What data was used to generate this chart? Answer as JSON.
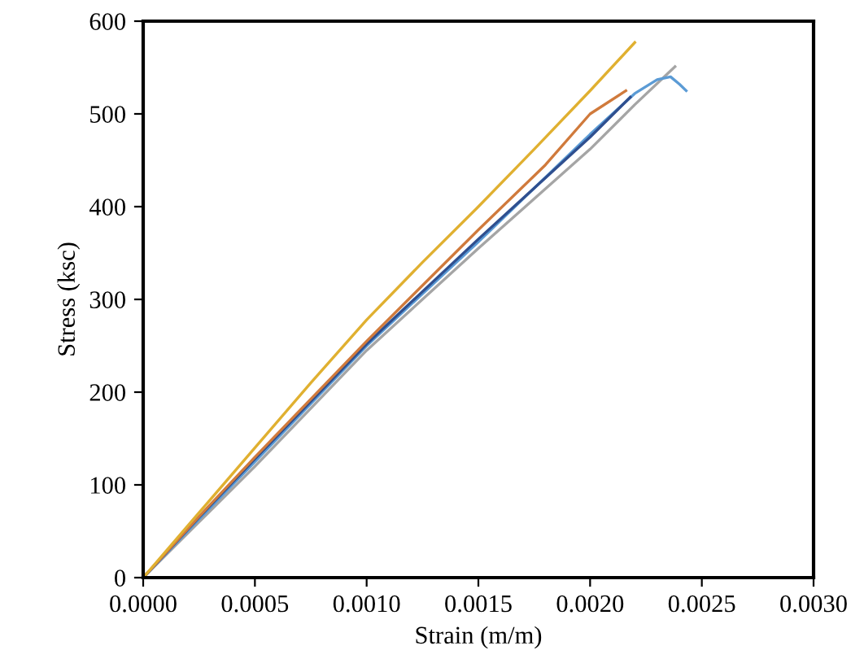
{
  "chart_data": {
    "type": "line",
    "xlabel": "Strain (m/m)",
    "ylabel": "Stress (ksc)",
    "xlim": [
      0,
      0.003
    ],
    "xticks": [
      {
        "value": 0,
        "label": "0.0000"
      },
      {
        "value": 0.0005,
        "label": "0.0005"
      },
      {
        "value": 0.001,
        "label": "0.0010"
      },
      {
        "value": 0.0015,
        "label": "0.0015"
      },
      {
        "value": 0.002,
        "label": "0.0020"
      },
      {
        "value": 0.0025,
        "label": "0.0025"
      },
      {
        "value": 0.003,
        "label": "0.0030"
      }
    ],
    "ylim": [
      0,
      600
    ],
    "yticks": [
      0,
      100,
      200,
      300,
      400,
      500,
      600
    ],
    "grid": false,
    "marker": "none",
    "line_style": "solid",
    "series": [
      {
        "color": "#a5a5a5",
        "x": [
          0,
          0.00025,
          0.0005,
          0.001,
          0.0015,
          0.002,
          0.0022,
          0.00238
        ],
        "values": [
          0,
          60,
          120,
          245,
          355,
          462,
          510,
          551
        ]
      },
      {
        "color": "#5b9bd5",
        "x": [
          0,
          0.00025,
          0.0005,
          0.001,
          0.0015,
          0.002,
          0.0022,
          0.0023,
          0.00236,
          0.0024,
          0.00243
        ],
        "values": [
          0,
          63,
          125,
          250,
          362,
          478,
          522,
          537,
          540,
          532,
          525
        ]
      },
      {
        "color": "#2f4f8f",
        "x": [
          0,
          0.00025,
          0.0005,
          0.001,
          0.0015,
          0.002,
          0.00218
        ],
        "values": [
          0,
          65,
          128,
          252,
          365,
          475,
          518
        ]
      },
      {
        "color": "#d07a3c",
        "x": [
          0,
          0.00025,
          0.0005,
          0.001,
          0.0015,
          0.0018,
          0.002,
          0.00216
        ],
        "values": [
          0,
          66,
          130,
          255,
          375,
          445,
          500,
          525
        ]
      },
      {
        "color": "#e0b030",
        "x": [
          0,
          0.00025,
          0.0005,
          0.00075,
          0.001,
          0.00125,
          0.0015,
          0.00175,
          0.002,
          0.0022
        ],
        "values": [
          0,
          70,
          140,
          210,
          278,
          340,
          400,
          462,
          525,
          577
        ]
      }
    ]
  }
}
